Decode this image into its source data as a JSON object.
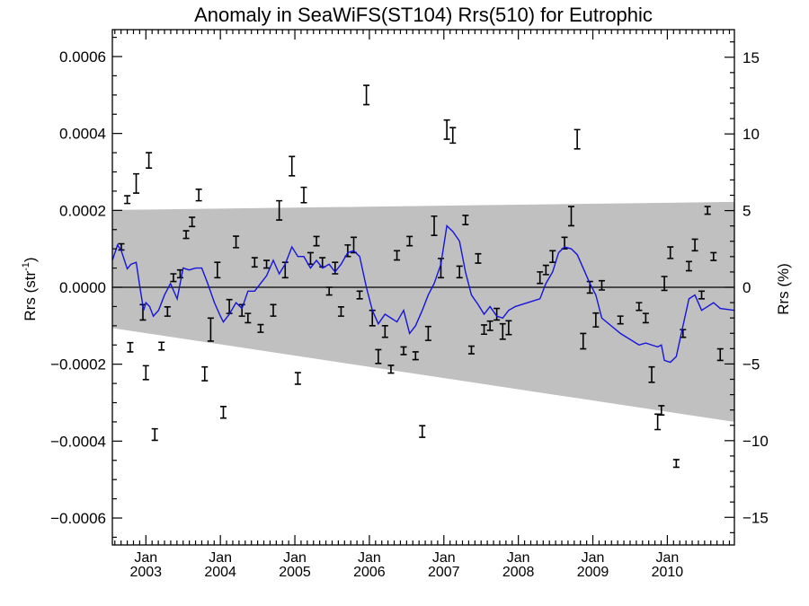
{
  "chart_data": {
    "type": "line",
    "title": "Anomaly in SeaWiFS(ST104) Rrs(510) for Eutrophic",
    "ylabel_left": {
      "base": "Rrs (str",
      "sup": "-1",
      "tail": ")"
    },
    "ylabel_right": "Rrs (%)",
    "xlim": [
      2002.55,
      2010.9
    ],
    "ylim": [
      -0.00067,
      0.00067
    ],
    "y2lim": [
      -16.8,
      16.8
    ],
    "y_ticks": [
      {
        "value": 0.0006,
        "label": "0.0006"
      },
      {
        "value": 0.0004,
        "label": "0.0004"
      },
      {
        "value": 0.0002,
        "label": "0.0002"
      },
      {
        "value": 0.0,
        "label": "0.0000"
      },
      {
        "value": -0.0002,
        "label": "−0.0002"
      },
      {
        "value": -0.0004,
        "label": "−0.0004"
      },
      {
        "value": -0.0006,
        "label": "−0.0006"
      }
    ],
    "y2_ticks": [
      {
        "value": 15,
        "label": "15"
      },
      {
        "value": 10,
        "label": "10"
      },
      {
        "value": 5,
        "label": "5"
      },
      {
        "value": 0,
        "label": "0"
      },
      {
        "value": -5,
        "label": "−5"
      },
      {
        "value": -10,
        "label": "−10"
      },
      {
        "value": -15,
        "label": "−15"
      }
    ],
    "x_ticks": [
      {
        "value": 2003.0,
        "month": "Jan",
        "year": "2003"
      },
      {
        "value": 2004.0,
        "month": "Jan",
        "year": "2004"
      },
      {
        "value": 2005.0,
        "month": "Jan",
        "year": "2005"
      },
      {
        "value": 2006.0,
        "month": "Jan",
        "year": "2006"
      },
      {
        "value": 2007.0,
        "month": "Jan",
        "year": "2007"
      },
      {
        "value": 2008.0,
        "month": "Jan",
        "year": "2008"
      },
      {
        "value": 2009.0,
        "month": "Jan",
        "year": "2009"
      },
      {
        "value": 2010.0,
        "month": "Jan",
        "year": "2010"
      }
    ],
    "band": {
      "color": "#c0c0c0",
      "x": [
        2002.55,
        2010.9
      ],
      "upper": [
        0.000201,
        0.000222
      ],
      "lower": [
        -0.000106,
        -0.00035
      ]
    },
    "zero_line": true,
    "series": [
      {
        "kind": "errorbar",
        "color": "#000000",
        "points": [
          [
            2002.67,
            0.000105,
            8e-06
          ],
          [
            2002.75,
            0.000228,
            1e-05
          ],
          [
            2002.79,
            -0.000156,
            1.2e-05
          ],
          [
            2002.87,
            0.00027,
            2.5e-05
          ],
          [
            2002.96,
            -6.5e-05,
            2e-05
          ],
          [
            2003.0,
            -0.000222,
            1.8e-05
          ],
          [
            2003.04,
            0.00033,
            2e-05
          ],
          [
            2003.12,
            -0.000383,
            1.5e-05
          ],
          [
            2003.21,
            -0.000153,
            1e-05
          ],
          [
            2003.29,
            -6.3e-05,
            1.2e-05
          ],
          [
            2003.37,
            2.5e-05,
            1e-05
          ],
          [
            2003.46,
            3.5e-05,
            1e-05
          ],
          [
            2003.54,
            0.000137,
            1e-05
          ],
          [
            2003.62,
            0.00017,
            1.2e-05
          ],
          [
            2003.71,
            0.00024,
            1.5e-05
          ],
          [
            2003.79,
            -0.000225,
            1.8e-05
          ],
          [
            2003.87,
            -0.00011,
            3e-05
          ],
          [
            2003.96,
            4.5e-05,
            2e-05
          ],
          [
            2004.04,
            -0.000325,
            1.5e-05
          ],
          [
            2004.12,
            -5e-05,
            1.8e-05
          ],
          [
            2004.21,
            0.000118,
            1.5e-05
          ],
          [
            2004.29,
            -6e-05,
            1.5e-05
          ],
          [
            2004.37,
            -8e-05,
            1.2e-05
          ],
          [
            2004.46,
            6.5e-05,
            1.2e-05
          ],
          [
            2004.54,
            -0.000107,
            1e-05
          ],
          [
            2004.62,
            6e-05,
            1e-05
          ],
          [
            2004.71,
            -6e-05,
            1.5e-05
          ],
          [
            2004.79,
            0.0002,
            2.5e-05
          ],
          [
            2004.87,
            4.5e-05,
            2e-05
          ],
          [
            2004.96,
            0.000315,
            2.5e-05
          ],
          [
            2005.04,
            -0.000237,
            1.5e-05
          ],
          [
            2005.12,
            0.00024,
            2e-05
          ],
          [
            2005.21,
            7.5e-05,
            1.5e-05
          ],
          [
            2005.29,
            0.00012,
            1.2e-05
          ],
          [
            2005.37,
            6.5e-05,
            1.2e-05
          ],
          [
            2005.46,
            -1e-05,
            1e-05
          ],
          [
            2005.54,
            5e-05,
            1.5e-05
          ],
          [
            2005.62,
            -6.3e-05,
            1.2e-05
          ],
          [
            2005.71,
            9.5e-05,
            1.5e-05
          ],
          [
            2005.79,
            0.00011,
            2e-05
          ],
          [
            2005.87,
            -2e-05,
            1e-05
          ],
          [
            2005.96,
            0.0005,
            2.5e-05
          ],
          [
            2006.04,
            -8e-05,
            2e-05
          ],
          [
            2006.12,
            -0.00018,
            1.8e-05
          ],
          [
            2006.21,
            -0.000115,
            1.5e-05
          ],
          [
            2006.29,
            -0.000213,
            1e-05
          ],
          [
            2006.37,
            8.3e-05,
            1.2e-05
          ],
          [
            2006.46,
            -0.000165,
            1e-05
          ],
          [
            2006.54,
            0.00012,
            1.2e-05
          ],
          [
            2006.62,
            -0.000178,
            1e-05
          ],
          [
            2006.71,
            -0.000375,
            1.5e-05
          ],
          [
            2006.79,
            -0.00012,
            1.8e-05
          ],
          [
            2006.87,
            0.00016,
            2.5e-05
          ],
          [
            2006.96,
            5e-05,
            2.5e-05
          ],
          [
            2007.04,
            0.00041,
            2.5e-05
          ],
          [
            2007.12,
            0.000395,
            2e-05
          ],
          [
            2007.21,
            4e-05,
            1.5e-05
          ],
          [
            2007.29,
            0.000175,
            1.2e-05
          ],
          [
            2007.37,
            -0.000163,
            1e-05
          ],
          [
            2007.46,
            7.5e-05,
            1.2e-05
          ],
          [
            2007.54,
            -0.00011,
            1.2e-05
          ],
          [
            2007.62,
            -0.0001,
            1.2e-05
          ],
          [
            2007.71,
            -7e-05,
            1.5e-05
          ],
          [
            2007.79,
            -0.000115,
            2e-05
          ],
          [
            2007.87,
            -0.000105,
            1.8e-05
          ],
          [
            2008.29,
            2.5e-05,
            1.5e-05
          ],
          [
            2008.37,
            4.5e-05,
            1.2e-05
          ],
          [
            2008.46,
            8e-05,
            1.5e-05
          ],
          [
            2008.62,
            0.000115,
            1.5e-05
          ],
          [
            2008.71,
            0.000185,
            2.5e-05
          ],
          [
            2008.79,
            0.000385,
            2.5e-05
          ],
          [
            2008.87,
            -0.00014,
            2e-05
          ],
          [
            2008.96,
            0.0,
            1.5e-05
          ],
          [
            2009.04,
            -8.5e-05,
            1.8e-05
          ],
          [
            2009.12,
            5e-06,
            1.2e-05
          ],
          [
            2009.37,
            -8.5e-05,
            1e-05
          ],
          [
            2009.62,
            -5e-05,
            1e-05
          ],
          [
            2009.71,
            -8e-05,
            1.2e-05
          ],
          [
            2009.79,
            -0.000227,
            2e-05
          ],
          [
            2009.87,
            -0.00035,
            2e-05
          ],
          [
            2009.92,
            -0.00032,
            1.2e-05
          ],
          [
            2009.96,
            1e-05,
            1.8e-05
          ],
          [
            2010.04,
            9e-05,
            1.5e-05
          ],
          [
            2010.12,
            -0.000458,
            1e-05
          ],
          [
            2010.21,
            -0.00012,
            1e-05
          ],
          [
            2010.29,
            5.5e-05,
            1.2e-05
          ],
          [
            2010.37,
            0.00011,
            1.5e-05
          ],
          [
            2010.46,
            -2e-05,
            1e-05
          ],
          [
            2010.54,
            0.0002,
            1e-05
          ],
          [
            2010.62,
            8e-05,
            1e-05
          ],
          [
            2010.71,
            -0.000175,
            1.5e-05
          ]
        ]
      },
      {
        "kind": "line",
        "color": "#1414dc",
        "x": [
          2002.55,
          2002.62,
          2002.67,
          2002.75,
          2002.8,
          2002.87,
          2002.92,
          2002.97,
          2003.0,
          2003.05,
          2003.1,
          2003.17,
          2003.25,
          2003.33,
          2003.42,
          2003.5,
          2003.58,
          2003.67,
          2003.75,
          2003.83,
          2003.92,
          2004.0,
          2004.04,
          2004.12,
          2004.21,
          2004.29,
          2004.37,
          2004.46,
          2004.54,
          2004.62,
          2004.71,
          2004.79,
          2004.87,
          2004.96,
          2005.04,
          2005.12,
          2005.21,
          2005.29,
          2005.37,
          2005.46,
          2005.54,
          2005.62,
          2005.71,
          2005.79,
          2005.87,
          2005.96,
          2006.04,
          2006.12,
          2006.21,
          2006.29,
          2006.37,
          2006.46,
          2006.54,
          2006.62,
          2006.71,
          2006.79,
          2006.87,
          2006.96,
          2007.04,
          2007.12,
          2007.21,
          2007.29,
          2007.37,
          2007.46,
          2007.54,
          2007.62,
          2007.71,
          2007.79,
          2007.87,
          2007.96,
          2008.29,
          2008.37,
          2008.46,
          2008.54,
          2008.62,
          2008.71,
          2008.79,
          2008.87,
          2008.96,
          2009.04,
          2009.12,
          2009.37,
          2009.62,
          2009.71,
          2009.79,
          2009.87,
          2009.92,
          2009.96,
          2010.04,
          2010.12,
          2010.21,
          2010.29,
          2010.37,
          2010.46,
          2010.54,
          2010.62,
          2010.71,
          2010.9
        ],
        "values": [
          7e-05,
          0.00011,
          9.5e-05,
          4.8e-05,
          6e-05,
          6.5e-05,
          0.0,
          -6e-05,
          -4e-05,
          -5e-05,
          -7.5e-05,
          -6e-05,
          -2e-05,
          1e-05,
          -3e-05,
          5e-05,
          4.5e-05,
          5e-05,
          5e-05,
          1e-05,
          -4e-05,
          -7.5e-05,
          -9e-05,
          -7e-05,
          -4e-05,
          -5.5e-05,
          -1e-05,
          -1e-05,
          1e-05,
          3e-05,
          7e-05,
          3.5e-05,
          6e-05,
          0.000105,
          8e-05,
          8e-05,
          5e-05,
          7e-05,
          5e-05,
          6e-05,
          4e-05,
          6e-05,
          9e-05,
          9.5e-05,
          8e-05,
          0.0,
          -6e-05,
          -9.5e-05,
          -7e-05,
          -8e-05,
          -9e-05,
          -6e-05,
          -0.00012,
          -0.0001,
          -6e-05,
          -2e-05,
          1e-05,
          6e-05,
          0.00016,
          0.000145,
          0.00012,
          4e-05,
          -2e-05,
          -4.5e-05,
          -7e-05,
          -5e-05,
          -7.5e-05,
          -8e-05,
          -6e-05,
          -5e-05,
          -3e-05,
          1e-05,
          4e-05,
          9e-05,
          0.000105,
          0.0001,
          8.5e-05,
          5e-05,
          1e-05,
          -2e-05,
          -8e-05,
          -0.00012,
          -0.00015,
          -0.000145,
          -0.00015,
          -0.000155,
          -0.00015,
          -0.00019,
          -0.000195,
          -0.00018,
          -0.0001,
          -3e-05,
          -2e-05,
          -6e-05,
          -5e-05,
          -4e-05,
          -5.5e-05,
          -6e-05
        ]
      }
    ]
  }
}
